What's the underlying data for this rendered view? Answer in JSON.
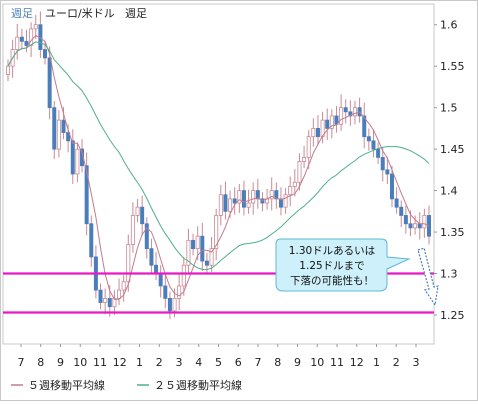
{
  "header": {
    "period_badge": "週足",
    "pair": "ユーロ/米ドル",
    "period": "週足"
  },
  "colors": {
    "up_candle": "#4a7ebb",
    "down_candle": "#4a7ebb",
    "ma5": "#c47a8c",
    "ma25": "#4fb08a",
    "support_line": "#e619c8",
    "callout_fill": "#cdf0fa",
    "callout_border": "#5fb7d6",
    "arrow": "#4a7ebb"
  },
  "annotation": {
    "line1": "1.30ドルあるいは",
    "line2": "1.25ドルまで",
    "line3": "下落の可能性も！"
  },
  "legend": {
    "ma5": "５週移動平均線",
    "ma25": "２５週移動平均線"
  },
  "chart_data": {
    "type": "candlestick",
    "title": "ユーロ/米ドル 週足",
    "ylim": [
      1.215,
      1.625
    ],
    "yticks": [
      "1.6",
      "1.55",
      "1.5",
      "1.45",
      "1.4",
      "1.35",
      "1.3",
      "1.25"
    ],
    "yvalues": [
      1.6,
      1.55,
      1.5,
      1.45,
      1.4,
      1.35,
      1.3,
      1.25
    ],
    "xticks": [
      "7",
      "8",
      "9",
      "10",
      "11",
      "12",
      "1",
      "2",
      "3",
      "4",
      "5",
      "6",
      "7",
      "8",
      "9",
      "10",
      "11",
      "12",
      "1",
      "2",
      "3"
    ],
    "horizontal_lines": [
      1.3,
      1.253
    ],
    "series": [
      {
        "name": "５週移動平均線",
        "values": []
      },
      {
        "name": "２５週移動平均線",
        "values": []
      }
    ],
    "closes": [
      1.55,
      1.57,
      1.585,
      1.58,
      1.575,
      1.595,
      1.6,
      1.57,
      1.56,
      1.5,
      1.45,
      1.485,
      1.47,
      1.46,
      1.42,
      1.45,
      1.43,
      1.36,
      1.32,
      1.28,
      1.265,
      1.27,
      1.26,
      1.27,
      1.28,
      1.29,
      1.335,
      1.37,
      1.38,
      1.36,
      1.33,
      1.31,
      1.3,
      1.285,
      1.27,
      1.255,
      1.27,
      1.285,
      1.31,
      1.34,
      1.33,
      1.345,
      1.315,
      1.31,
      1.33,
      1.37,
      1.395,
      1.375,
      1.39,
      1.385,
      1.4,
      1.38,
      1.385,
      1.4,
      1.39,
      1.385,
      1.39,
      1.4,
      1.39,
      1.38,
      1.395,
      1.405,
      1.41,
      1.435,
      1.44,
      1.465,
      1.475,
      1.465,
      1.485,
      1.475,
      1.49,
      1.48,
      1.5,
      1.495,
      1.49,
      1.5,
      1.49,
      1.465,
      1.46,
      1.45,
      1.44,
      1.425,
      1.42,
      1.39,
      1.38,
      1.37,
      1.36,
      1.355,
      1.36,
      1.355,
      1.37,
      1.345
    ]
  }
}
